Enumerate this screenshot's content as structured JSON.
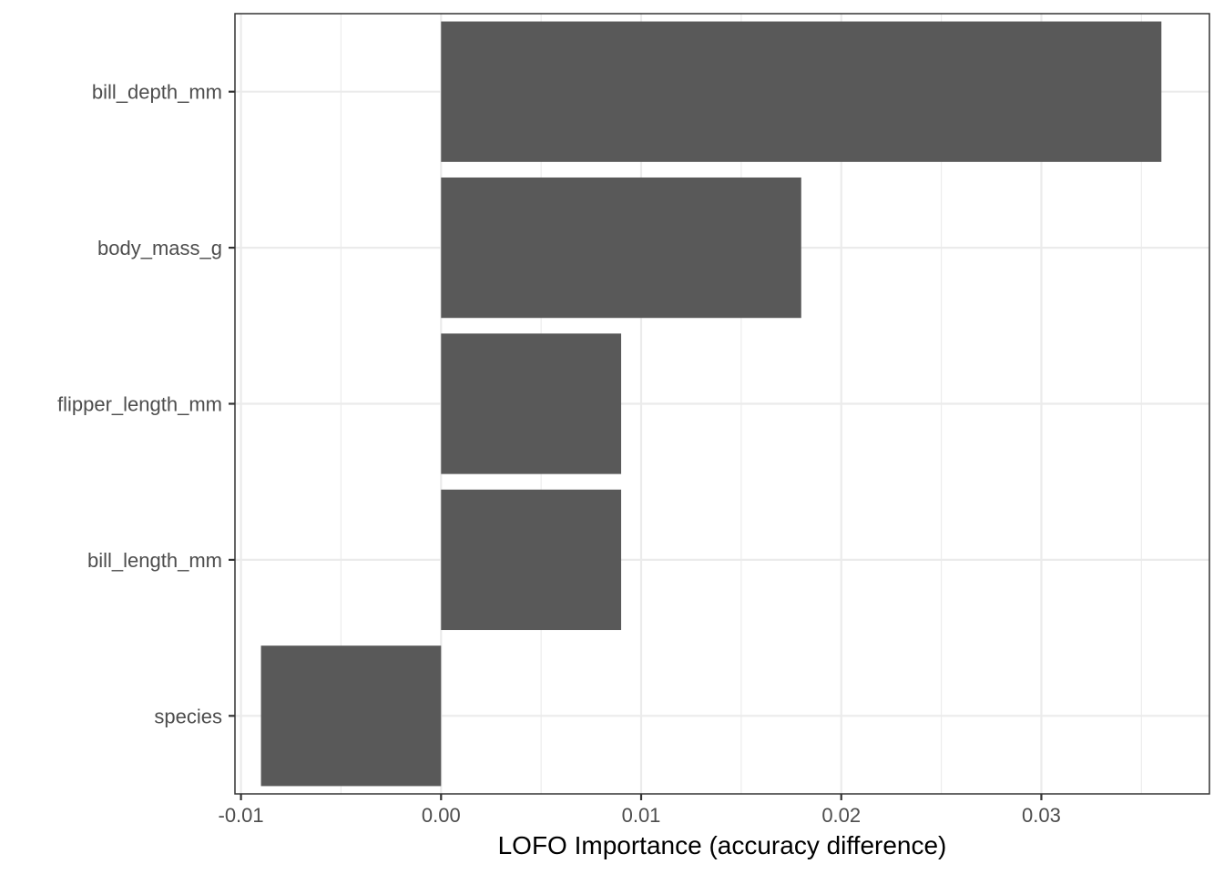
{
  "chart_data": {
    "type": "bar",
    "orientation": "horizontal",
    "title": "",
    "xlabel": "LOFO Importance (accuracy difference)",
    "ylabel": "",
    "categories": [
      "bill_depth_mm",
      "body_mass_g",
      "flipper_length_mm",
      "bill_length_mm",
      "species"
    ],
    "values": [
      0.036,
      0.018,
      0.009,
      0.009,
      -0.009
    ],
    "xlim": [
      -0.0103,
      0.0384
    ],
    "x_ticks": [
      -0.01,
      0.0,
      0.01,
      0.02,
      0.03
    ],
    "x_tick_labels": [
      "-0.01",
      "0.00",
      "0.01",
      "0.02",
      "0.03"
    ],
    "grid": true,
    "legend": "none",
    "bar_color": "#595959"
  }
}
